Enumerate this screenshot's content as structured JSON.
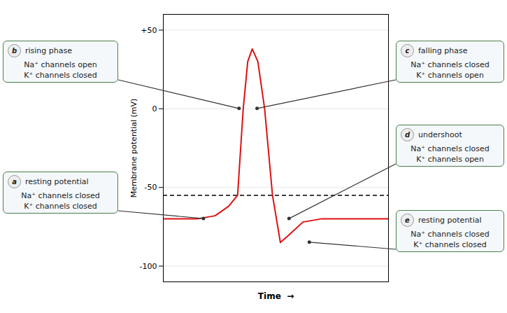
{
  "chart_data": {
    "type": "line",
    "x": [
      0,
      1.5,
      2.3,
      2.9,
      3.3,
      3.55,
      3.75,
      3.95,
      4.2,
      4.5,
      4.85,
      5.2,
      5.6,
      6.2,
      7.0,
      10
    ],
    "values": [
      -70,
      -70,
      -68,
      -62,
      -55,
      0,
      30,
      38,
      30,
      0,
      -55,
      -85,
      -80,
      -72,
      -70,
      -70
    ],
    "color": "#dd1111",
    "xlabel": "Time  →",
    "ylabel": "Membrane potential (mV)",
    "xlim": [
      0,
      10
    ],
    "ylim": [
      -110,
      60
    ],
    "yticks": [
      -100,
      -50,
      0,
      {
        "value": 50,
        "label": "+50"
      }
    ],
    "grid": true,
    "tick_labels": "y",
    "reference_lines": [
      {
        "y": -55,
        "line_style": "dashed",
        "color": "black"
      }
    ],
    "annotations": [
      {
        "label": "b",
        "title": "rising phase",
        "lines": [
          "Na⁺ channels open",
          "K⁺ channels closed"
        ],
        "x": 3.38,
        "y": 0
      },
      {
        "label": "a",
        "title": "resting potential",
        "lines": [
          "Na⁺ channels closed",
          "K⁺ channels closed"
        ],
        "x": 1.8,
        "y": -70
      },
      {
        "label": "c",
        "title": "falling phase",
        "lines": [
          "Na⁺ channels closed",
          "K⁺ channels open"
        ],
        "x": 4.18,
        "y": 0
      },
      {
        "label": "d",
        "title": "undershoot",
        "lines": [
          "Na⁺ channels closed",
          "K⁺ channels open"
        ],
        "x": 5.6,
        "y": -70
      },
      {
        "label": "e",
        "title": "resting potential",
        "lines": [
          "Na⁺ channels closed",
          "K⁺ channels closed"
        ],
        "x": 6.5,
        "y": -85
      }
    ]
  }
}
